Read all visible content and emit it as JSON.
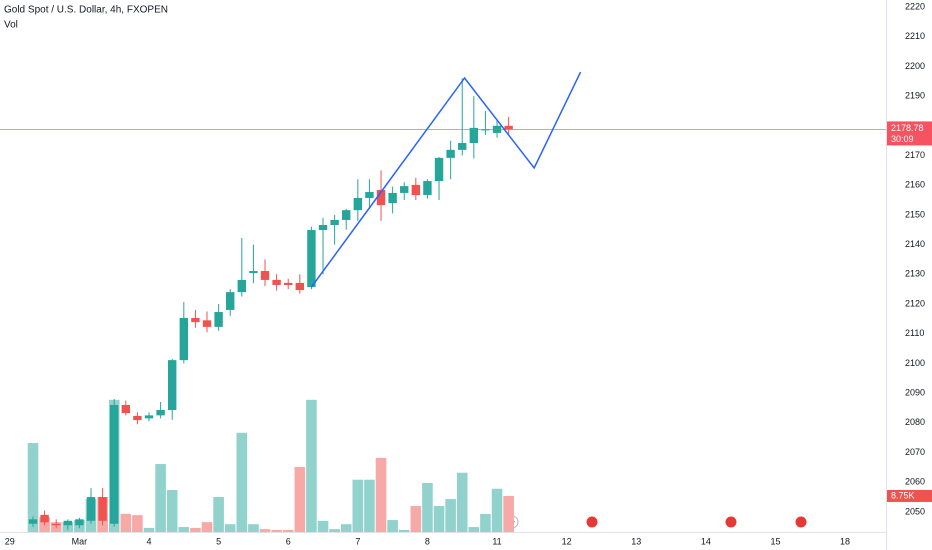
{
  "chart_data": {
    "type": "candlestick",
    "title": "Gold Spot / U.S. Dollar, 4h, FXOPEN",
    "countdown": "30:09",
    "open": [
      2046.0,
      2049.0,
      2046.0,
      2045.5,
      2045.5,
      2047.0,
      2055.0,
      2046.0,
      2086.0,
      2082.3,
      2081.5,
      2082.5,
      2084.3,
      2101.1,
      2115.3,
      2114.5,
      2112.3,
      2118.0,
      2124.0,
      2130.4,
      2131.1,
      2128.1,
      2127.1,
      2127.1,
      2125.7,
      2144.9,
      2146.6,
      2148.3,
      2151.6,
      2155.7,
      2158.4,
      2154.0,
      2157.4,
      2160.1,
      2156.7,
      2161.4,
      2169.2,
      2171.9,
      2174.2,
      2178.6,
      2177.6,
      2180.0
    ],
    "high": [
      2048.5,
      2050.5,
      2047.5,
      2047.5,
      2048.0,
      2058.0,
      2058.0,
      2088.0,
      2087.5,
      2083.5,
      2083.5,
      2087.0,
      2101.5,
      2120.7,
      2118.0,
      2117.5,
      2120.0,
      2125.0,
      2142.2,
      2140.0,
      2135.0,
      2130.0,
      2128.5,
      2130.0,
      2146.0,
      2149.0,
      2150.0,
      2152.0,
      2162.0,
      2162.0,
      2165.0,
      2159.5,
      2161.0,
      2162.5,
      2162.0,
      2169.5,
      2175.0,
      2196.0,
      2190.0,
      2185.0,
      2182.0,
      2183.0
    ],
    "low": [
      2045.0,
      2045.5,
      2044.5,
      2044.0,
      2044.5,
      2046.0,
      2045.5,
      2045.0,
      2082.5,
      2079.5,
      2080.5,
      2081.5,
      2081.0,
      2100.0,
      2112.0,
      2110.5,
      2111.0,
      2116.0,
      2122.5,
      2127.0,
      2126.0,
      2124.5,
      2125.0,
      2123.5,
      2125.0,
      2130.0,
      2140.0,
      2145.0,
      2148.0,
      2152.0,
      2148.0,
      2150.5,
      2155.0,
      2155.0,
      2155.5,
      2155.0,
      2162.0,
      2170.0,
      2169.0,
      2177.0,
      2176.0,
      2177.0
    ],
    "close": [
      2047.5,
      2046.5,
      2045.5,
      2047.0,
      2047.5,
      2055.0,
      2047.0,
      2086.0,
      2083.3,
      2080.9,
      2082.5,
      2084.3,
      2101.1,
      2115.3,
      2113.9,
      2112.3,
      2117.3,
      2124.0,
      2128.1,
      2131.1,
      2128.1,
      2126.4,
      2126.4,
      2124.7,
      2144.9,
      2146.6,
      2148.3,
      2151.6,
      2155.7,
      2157.7,
      2153.3,
      2157.4,
      2159.7,
      2156.7,
      2161.4,
      2169.2,
      2171.9,
      2174.2,
      2179.3,
      2178.8,
      2180.0,
      2178.78
    ],
    "up_color": "#26a69a",
    "down_color": "#ef5350",
    "price_line_color": "#f7525f",
    "ylim": [
      2043.23,
      2222.36
    ],
    "yticks": [
      2050,
      2060,
      2070,
      2080,
      2090,
      2100,
      2110,
      2120,
      2130,
      2140,
      2150,
      2160,
      2170,
      2180,
      2190,
      2200,
      2210,
      2220
    ],
    "xlim": [
      -2.845,
      73.53
    ],
    "xticks": [
      {
        "value": -2,
        "label": "29"
      },
      {
        "value": 4,
        "label": "Mar"
      },
      {
        "value": 10,
        "label": "4"
      },
      {
        "value": 16,
        "label": "5"
      },
      {
        "value": 22,
        "label": "6"
      },
      {
        "value": 28,
        "label": "7"
      },
      {
        "value": 34,
        "label": "8"
      },
      {
        "value": 40,
        "label": "11"
      },
      {
        "value": 46,
        "label": "12"
      },
      {
        "value": 52,
        "label": "13"
      },
      {
        "value": 58,
        "label": "14"
      },
      {
        "value": 64,
        "label": "15"
      },
      {
        "value": 70,
        "label": "18"
      }
    ],
    "volume": {
      "name": "Vol",
      "values": [
        21.6,
        3.6,
        2.4,
        2.4,
        2.9,
        8.0,
        8.5,
        32.1,
        4.4,
        4.1,
        1.0,
        16.5,
        10.2,
        1.2,
        1.0,
        2.4,
        8.5,
        1.9,
        24.1,
        1.9,
        0.7,
        0.5,
        0.5,
        15.8,
        32.1,
        2.7,
        0.7,
        1.9,
        12.7,
        12.7,
        18.0,
        2.9,
        0.5,
        6.3,
        11.9,
        6.3,
        8.0,
        14.4,
        1.2,
        4.4,
        10.5,
        8.75
      ],
      "last_value_label": "8.75K",
      "ylim": [
        0,
        34
      ],
      "up_color": "#92d2cc",
      "down_color": "#f7a9a7"
    },
    "drawing": {
      "color": "#2962ff",
      "x": [
        24,
        37.2,
        43.2,
        47.2
      ],
      "y": [
        2125.7,
        2196.1,
        2165.8,
        2198.1
      ]
    }
  }
}
